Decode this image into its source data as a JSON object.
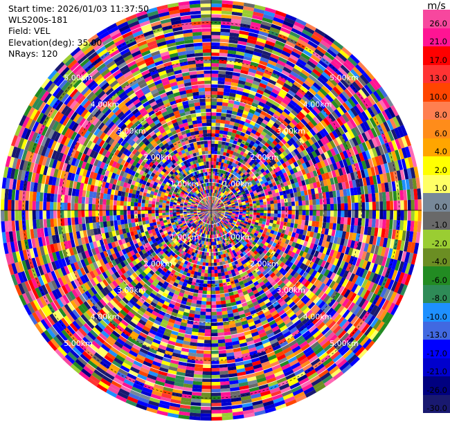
{
  "info": {
    "start_time": "Start time: 2026/01/03 11:37:50",
    "station": "WLS200s-181",
    "field": "Field: VEL",
    "elevation": "Elevation(deg): 35.00",
    "nrays": "NRays: 120"
  },
  "colorbar": {
    "unit": "m/s",
    "bands": [
      {
        "label": "26.0",
        "color": "#f7479e"
      },
      {
        "label": "21.0",
        "color": "#ff1493"
      },
      {
        "label": "17.0",
        "color": "#ff0000"
      },
      {
        "label": "13.0",
        "color": "#ff3333"
      },
      {
        "label": "10.0",
        "color": "#ff4500"
      },
      {
        "label": "8.0",
        "color": "#ff7f50"
      },
      {
        "label": "6.0",
        "color": "#ff8c1a"
      },
      {
        "label": "4.0",
        "color": "#ffa500"
      },
      {
        "label": "2.0",
        "color": "#ffff00"
      },
      {
        "label": "1.0",
        "color": "#ffff66"
      },
      {
        "label": "0.0",
        "color": "#778899"
      },
      {
        "label": "-1.0",
        "color": "#696969"
      },
      {
        "label": "-2.0",
        "color": "#9acd32"
      },
      {
        "label": "-4.0",
        "color": "#6b8e23"
      },
      {
        "label": "-6.0",
        "color": "#228b22"
      },
      {
        "label": "-8.0",
        "color": "#2e8b57"
      },
      {
        "label": "-10.0",
        "color": "#1e90ff"
      },
      {
        "label": "-13.0",
        "color": "#4169e1"
      },
      {
        "label": "-17.0",
        "color": "#0000ff"
      },
      {
        "label": "-21.0",
        "color": "#0000cd"
      },
      {
        "label": "-26.0",
        "color": "#000080"
      },
      {
        "label": "-30.0",
        "color": "#191970"
      }
    ]
  },
  "chart_data": {
    "type": "heatmap",
    "projection": "polar PPI",
    "field": "VEL",
    "units": "m/s",
    "elevation_deg": 35.0,
    "n_rays": 120,
    "range_rings": [
      {
        "label": "1.00km",
        "km": 1
      },
      {
        "label": "2.00km",
        "km": 2
      },
      {
        "label": "3.00km",
        "km": 3
      },
      {
        "label": "4.00km",
        "km": 4
      },
      {
        "label": "5.00km",
        "km": 5
      }
    ],
    "max_range_km": 5.6,
    "color_levels": [
      26.0,
      21.0,
      17.0,
      13.0,
      10.0,
      8.0,
      6.0,
      4.0,
      2.0,
      1.0,
      0.0,
      -1.0,
      -2.0,
      -4.0,
      -6.0,
      -8.0,
      -10.0,
      -13.0,
      -17.0,
      -21.0,
      -26.0,
      -30.0
    ],
    "data_note": "velocity values appear spatially random across all colour levels"
  }
}
